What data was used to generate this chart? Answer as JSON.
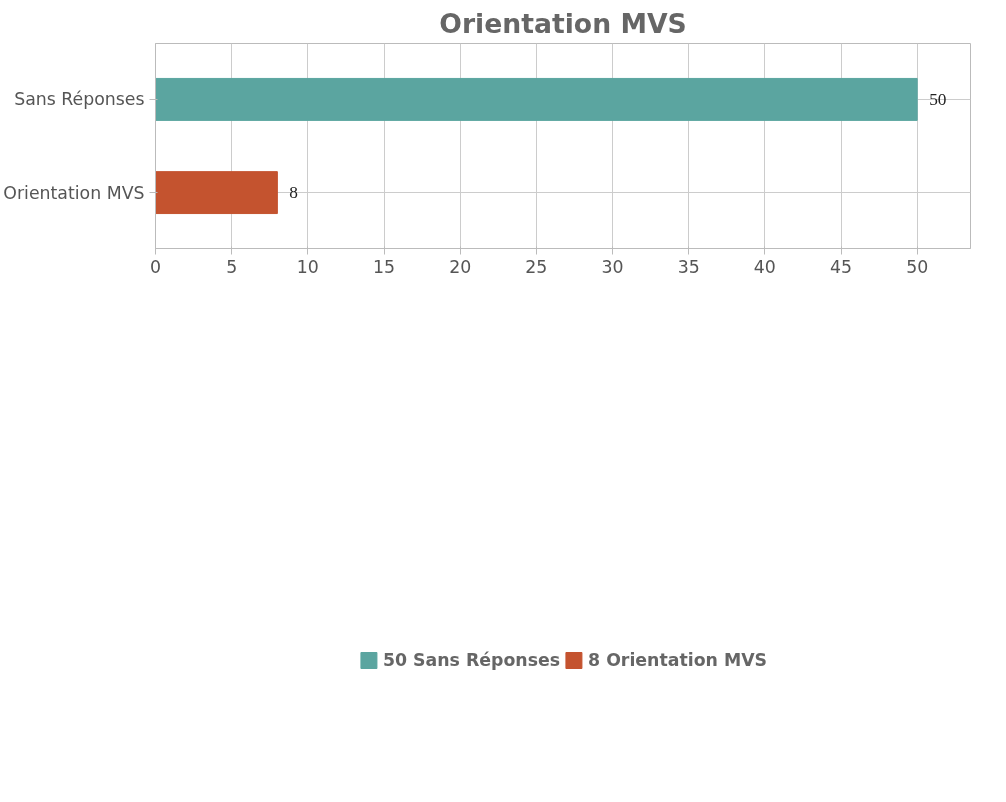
{
  "chart_data": {
    "type": "bar",
    "orientation": "horizontal",
    "title": "Orientation MVS",
    "categories": [
      "Sans Réponses",
      "Orientation MVS"
    ],
    "series": [
      {
        "name": "50 Sans Réponses",
        "color": "#5ba5a0",
        "values": [
          50,
          null
        ]
      },
      {
        "name": "8 Orientation MVS",
        "color": "#c4532f",
        "values": [
          null,
          8
        ]
      }
    ],
    "xlim": [
      0,
      53.5
    ],
    "xticks": [
      0,
      5,
      10,
      15,
      20,
      25,
      30,
      35,
      40,
      45,
      50
    ],
    "grid": true,
    "legend": "bottom",
    "data_labels": true
  }
}
